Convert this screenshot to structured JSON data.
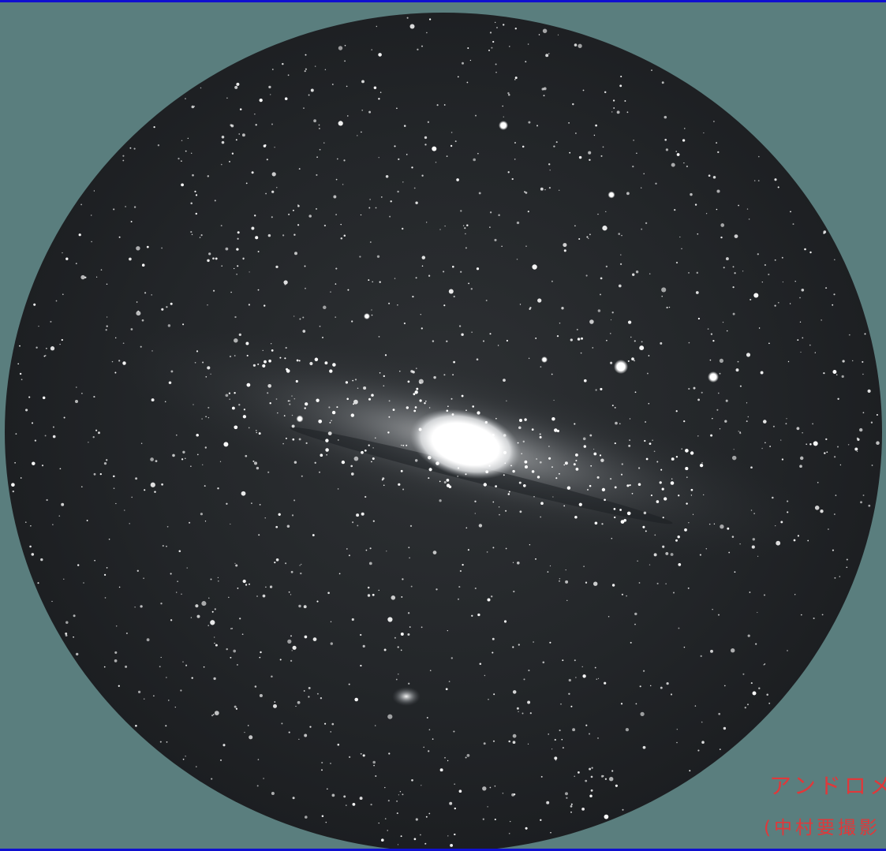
{
  "image": {
    "subject": "andromeda-galaxy-photographic-plate",
    "colors": {
      "background": "#5a7e7e",
      "frame_border": "#1010d0",
      "sky": "#202327",
      "core": "#ffffff",
      "caption": "#e0383a"
    }
  },
  "caption": {
    "title": "アンドロメ",
    "credit": "(中村要撮影"
  }
}
